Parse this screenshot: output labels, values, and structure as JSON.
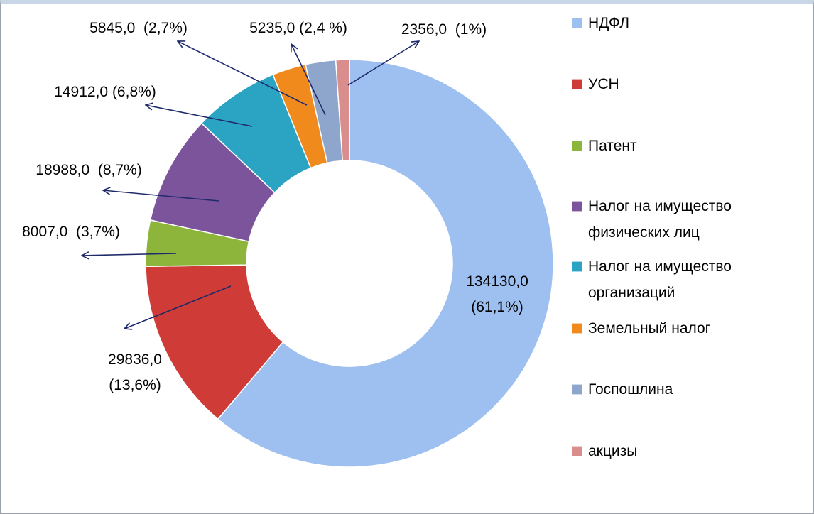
{
  "chart_data": {
    "type": "donut",
    "categories": [
      "НДФЛ",
      "УСН",
      "Патент",
      "Налог на имущество физических лиц",
      "Налог на имущество организаций",
      "Земельный налог",
      "Госпошлина",
      "акцизы"
    ],
    "values": [
      134130.0,
      29836.0,
      8007.0,
      18988.0,
      14912.0,
      5845.0,
      5235.0,
      2356.0
    ],
    "value_labels": [
      "134130,0\n(61,1%)",
      "29836,0\n(13,6%)",
      "8007,0  (3,7%)",
      "18988,0  (8,7%)",
      "14912,0 (6,8%)",
      "5845,0  (2,7%)",
      "5235,0 (2,4 %)",
      "2356,0  (1%)"
    ],
    "colors": [
      "#9dc0f0",
      "#cf3b36",
      "#8db53c",
      "#7b549b",
      "#2ba4c4",
      "#f08a1d",
      "#8ea6cb",
      "#d98d8c"
    ]
  }
}
